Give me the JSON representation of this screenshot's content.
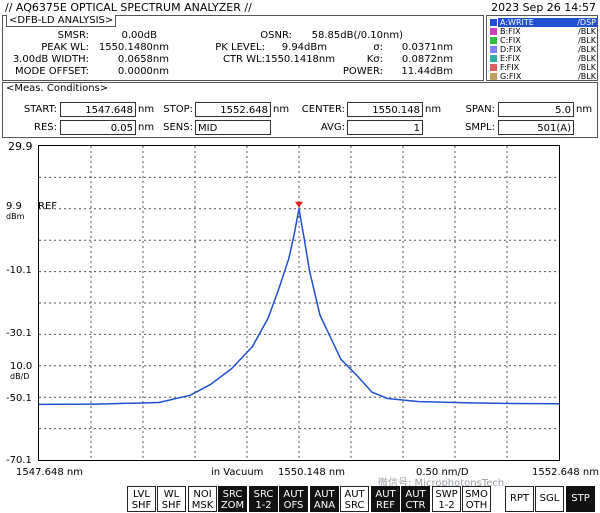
{
  "header": {
    "title": "// AQ6375E OPTICAL SPECTRUM ANALYZER //",
    "datetime": "2023 Sep 26 14:57"
  },
  "analysis": {
    "title": "<DFB-LD ANALYSIS>",
    "rows": [
      {
        "l1": "SMSR:",
        "v1": "0.00dB",
        "l2": "OSNR:",
        "v2": "58.85dB(/0.10nm)"
      },
      {
        "l1": "PEAK WL:",
        "v1": "1550.1480nm",
        "l2": "PK LEVEL:",
        "v2": "9.94dBm",
        "l3": "σ:",
        "v3": "0.0371nm"
      },
      {
        "l1": "3.00dB WIDTH:",
        "v1": "0.0658nm",
        "l2": "CTR WL:",
        "v2": "1550.1418nm",
        "l3": "Kσ:",
        "v3": "0.0872nm"
      },
      {
        "l1": "MODE OFFSET:",
        "v1": "0.0000nm",
        "l3": "POWER:",
        "v3": "11.44dBm"
      }
    ]
  },
  "traces": [
    {
      "name": "A:WRITE",
      "mode": "/DSP",
      "color": "#1e50d0",
      "active": true
    },
    {
      "name": "B:FIX",
      "mode": "/BLK",
      "color": "#d040c0"
    },
    {
      "name": "C:FIX",
      "mode": "/BLK",
      "color": "#30c040"
    },
    {
      "name": "D:FIX",
      "mode": "/BLK",
      "color": "#8080ff"
    },
    {
      "name": "E:FIX",
      "mode": "/BLK",
      "color": "#30b0a0"
    },
    {
      "name": "F:FIX",
      "mode": "/BLK",
      "color": "#e06060"
    },
    {
      "name": "G:FIX",
      "mode": "/BLK",
      "color": "#c0a060"
    }
  ],
  "meas": {
    "title": "<Meas. Conditions>",
    "start_label": "START:",
    "start": "1547.648",
    "start_unit": "nm",
    "stop_label": "STOP:",
    "stop": "1552.648",
    "stop_unit": "nm",
    "center_label": "CENTER:",
    "center": "1550.148",
    "center_unit": "nm",
    "span_label": "SPAN:",
    "span": "5.0",
    "span_unit": "nm",
    "res_label": "RES:",
    "res": "0.05",
    "res_unit": "nm",
    "sens_label": "SENS:",
    "sens": "MID",
    "avg_label": "AVG:",
    "avg": "1",
    "smpl_label": "SMPL:",
    "smpl": "501(A)"
  },
  "axis": {
    "y_top": "29.9",
    "ref_value": "9.9",
    "ref_text": "REF",
    "ref_unit": "dBm",
    "y_m10": "-10.1",
    "y_m30": "-30.1",
    "div_value": "10.0",
    "div_unit": "dB/D",
    "y_m50": "-50.1",
    "y_bottom": "-70.1",
    "x_left": "1547.648 nm",
    "x_medium": "in Vacuum",
    "x_center": "1550.148 nm",
    "x_div": "0.50 nm/D",
    "x_right": "1552.648 nm"
  },
  "watermark": "微信号: MicrophotonsTech",
  "buttons": [
    {
      "l1": "LVL",
      "l2": "SHF",
      "dark": false
    },
    {
      "l1": "WL",
      "l2": "SHF",
      "dark": false
    },
    {
      "l1": "NOI",
      "l2": "MSK",
      "dark": false
    },
    {
      "l1": "SRC",
      "l2": "ZOM",
      "dark": true
    },
    {
      "l1": "SRC",
      "l2": "1-2",
      "dark": true
    },
    {
      "l1": "AUT",
      "l2": "OFS",
      "dark": true
    },
    {
      "l1": "AUT",
      "l2": "ANA",
      "dark": true
    },
    {
      "l1": "AUT",
      "l2": "SRC",
      "dark": false
    },
    {
      "l1": "AUT",
      "l2": "REF",
      "dark": true
    },
    {
      "l1": "AUT",
      "l2": "CTR",
      "dark": true
    },
    {
      "l1": "SWP",
      "l2": "1-2",
      "dark": false
    },
    {
      "l1": "SMO",
      "l2": "OTH",
      "dark": false
    },
    {
      "l1": "RPT",
      "l2": "",
      "dark": false
    },
    {
      "l1": "SGL",
      "l2": "",
      "dark": false
    },
    {
      "l1": "STP",
      "l2": "",
      "dark": true
    }
  ],
  "chart_data": {
    "type": "line",
    "xlabel": "",
    "ylabel": "",
    "xlim": [
      1547.648,
      1552.648
    ],
    "ylim": [
      -70.1,
      29.9
    ],
    "series": [
      {
        "color": "#1e50d0",
        "x": [
          1547.648,
          1548.2,
          1548.8,
          1549.1,
          1549.3,
          1549.5,
          1549.7,
          1549.85,
          1549.95,
          1550.05,
          1550.1,
          1550.148,
          1550.2,
          1550.25,
          1550.35,
          1550.45,
          1550.55,
          1550.7,
          1550.85,
          1551.0,
          1551.3,
          1551.8,
          1552.2,
          1552.648
        ],
        "y": [
          -52.4,
          -52.3,
          -51.8,
          -49.5,
          -46,
          -41,
          -34,
          -25,
          -16,
          -6,
          1.5,
          9.9,
          0,
          -10,
          -24,
          -31,
          -38,
          -43,
          -48.5,
          -50.5,
          -51.5,
          -51.9,
          -52.1,
          -52.2
        ]
      }
    ]
  }
}
